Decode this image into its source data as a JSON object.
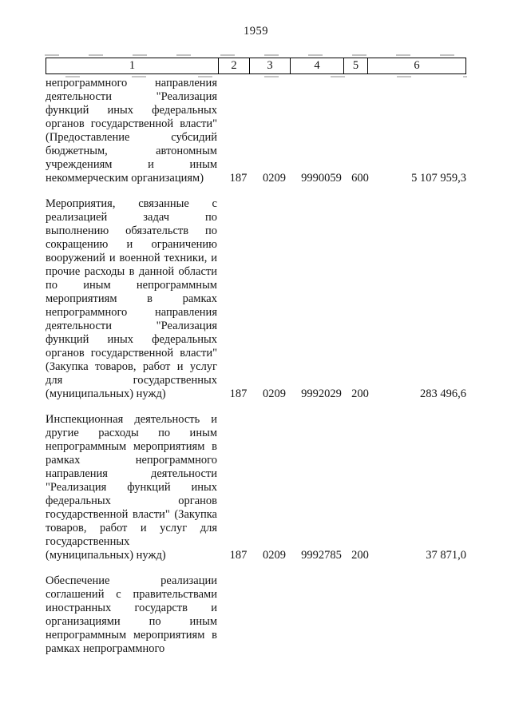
{
  "page": {
    "number": "1959"
  },
  "table": {
    "header": [
      "1",
      "2",
      "3",
      "4",
      "5",
      "6"
    ],
    "rows": [
      {
        "description": "непрограммного направления деятельности \"Реализация функций иных федеральных органов государственной власти\" (Предоставление субсидий бюджетным, автономным учреждениям и иным некоммерческим организациям)",
        "grbs": "187",
        "section": "0209",
        "target_article": "9990059",
        "expense_type": "600",
        "amount": "5 107 959,3"
      },
      {
        "description": "Мероприятия, связанные с реализацией задач по выполнению обязательств по сокращению и ограничению вооружений и военной техники, и прочие расходы в данной области по иным непрограммным мероприятиям в рамках непрограммного направления деятельности \"Реализация функций иных федеральных органов государственной власти\" (Закупка товаров, работ и услуг для государственных (муниципальных) нужд)",
        "grbs": "187",
        "section": "0209",
        "target_article": "9992029",
        "expense_type": "200",
        "amount": "283 496,6"
      },
      {
        "description": "Инспекционная деятельность и другие расходы по иным непрограммным мероприятиям в рамках непрограммного направления деятельности \"Реализация функций иных федеральных органов государственной власти\" (Закупка товаров, работ и услуг для государственных (муниципальных) нужд)",
        "grbs": "187",
        "section": "0209",
        "target_article": "9992785",
        "expense_type": "200",
        "amount": "37 871,0"
      },
      {
        "description": "Обеспечение реализации соглашений с правительствами иностранных государств и организациями по иным непрограммным мероприятиям в рамках непрограммного",
        "grbs": "",
        "section": "",
        "target_article": "",
        "expense_type": "",
        "amount": ""
      }
    ]
  }
}
